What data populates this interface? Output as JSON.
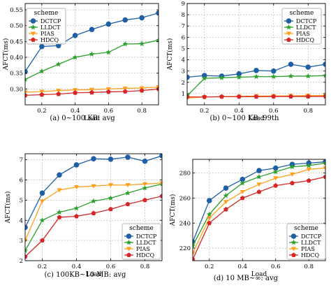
{
  "colors": {
    "DCTCP": "#1f5fa6",
    "LLDCT": "#2ca02c",
    "PIAS": "#ff9f1c",
    "HDCQ": "#d62728",
    "grid": "#bdbdbd"
  },
  "chart_data": [
    {
      "type": "line",
      "caption": "(a)  0~100 KB: avg",
      "xlabel": "Load",
      "ylabel": "AFCT(ms)",
      "xlim": [
        0.1,
        0.9
      ],
      "ylim": [
        0.25,
        0.57
      ],
      "xticks": [
        0.2,
        0.4,
        0.6,
        0.8
      ],
      "yticks": [
        0.3,
        0.35,
        0.4,
        0.45,
        0.5,
        0.55
      ],
      "ytick_labels": [
        "0.30",
        "0.35",
        "0.40",
        "0.45",
        "0.50",
        "0.55"
      ],
      "grid": true,
      "legend": {
        "title": "scheme",
        "placement": "top-left"
      },
      "x": [
        0.1,
        0.2,
        0.3,
        0.4,
        0.5,
        0.6,
        0.7,
        0.8,
        0.9
      ],
      "series": [
        {
          "name": "DCTCP",
          "values": [
            0.355,
            0.434,
            0.437,
            0.469,
            0.488,
            0.505,
            0.518,
            0.525,
            0.54
          ]
        },
        {
          "name": "LLDCT",
          "values": [
            0.33,
            0.356,
            0.378,
            0.4,
            0.41,
            0.416,
            0.442,
            0.443,
            0.454
          ]
        },
        {
          "name": "PIAS",
          "values": [
            0.29,
            0.292,
            0.295,
            0.297,
            0.298,
            0.3,
            0.302,
            0.303,
            0.306
          ]
        },
        {
          "name": "HDCQ",
          "values": [
            0.28,
            0.282,
            0.284,
            0.288,
            0.289,
            0.291,
            0.292,
            0.295,
            0.3
          ]
        }
      ]
    },
    {
      "type": "line",
      "caption": "(b)  0~100 KB: 99th",
      "xlabel": "Load",
      "ylabel": "AFCT(ms)",
      "xlim": [
        0.1,
        0.9
      ],
      "ylim": [
        0,
        9
      ],
      "xticks": [
        0.2,
        0.4,
        0.6,
        0.8
      ],
      "yticks": [
        1,
        2,
        3,
        4,
        5,
        6,
        7,
        8,
        9
      ],
      "ytick_labels": [
        "1",
        "2",
        "3",
        "4",
        "5",
        "6",
        "7",
        "8",
        "9"
      ],
      "grid": true,
      "legend": {
        "title": "scheme",
        "placement": "top-right"
      },
      "x": [
        0.1,
        0.2,
        0.3,
        0.4,
        0.5,
        0.6,
        0.7,
        0.8,
        0.9
      ],
      "series": [
        {
          "name": "DCTCP",
          "values": [
            2.45,
            2.6,
            2.55,
            2.75,
            3.05,
            3.0,
            3.6,
            3.35,
            3.6
          ]
        },
        {
          "name": "LLDCT",
          "values": [
            0.8,
            2.35,
            2.4,
            2.45,
            2.5,
            2.5,
            2.55,
            2.55,
            2.6
          ]
        },
        {
          "name": "PIAS",
          "values": [
            0.6,
            0.7,
            0.72,
            0.75,
            0.78,
            0.78,
            0.8,
            0.82,
            0.82
          ]
        },
        {
          "name": "HDCQ",
          "values": [
            0.7,
            0.7,
            0.72,
            0.72,
            0.72,
            0.74,
            0.74,
            0.74,
            0.75
          ]
        }
      ]
    },
    {
      "type": "line",
      "caption": "(c)  100KB~10 MB: avg",
      "xlabel": "Load",
      "ylabel": "AFCT(ms)",
      "xlim": [
        0.1,
        0.9
      ],
      "ylim": [
        2,
        7.3
      ],
      "xticks": [
        0.2,
        0.4,
        0.6,
        0.8
      ],
      "yticks": [
        2,
        3,
        4,
        5,
        6,
        7
      ],
      "ytick_labels": [
        "2",
        "3",
        "4",
        "5",
        "6",
        "7"
      ],
      "grid": true,
      "legend": {
        "title": "scheme",
        "placement": "bottom-right"
      },
      "x": [
        0.1,
        0.2,
        0.3,
        0.4,
        0.5,
        0.6,
        0.7,
        0.8,
        0.9
      ],
      "series": [
        {
          "name": "DCTCP",
          "values": [
            3.65,
            5.35,
            6.25,
            6.75,
            7.05,
            7.03,
            7.13,
            6.93,
            7.2
          ]
        },
        {
          "name": "LLDCT",
          "values": [
            2.5,
            4.0,
            4.4,
            4.6,
            4.95,
            5.1,
            5.35,
            5.6,
            5.8
          ]
        },
        {
          "name": "PIAS",
          "values": [
            3.0,
            4.95,
            5.5,
            5.65,
            5.7,
            5.75,
            5.75,
            5.8,
            5.85
          ]
        },
        {
          "name": "HDCQ",
          "values": [
            2.2,
            3.0,
            4.15,
            4.2,
            4.35,
            4.55,
            4.8,
            5.0,
            5.2
          ]
        }
      ]
    },
    {
      "type": "line",
      "caption": "(d)  10 MB~∞: avg",
      "xlabel": "Load",
      "ylabel": "AFCT(ms)",
      "xlim": [
        0.1,
        0.9
      ],
      "ylim": [
        210,
        291
      ],
      "xticks": [
        0.2,
        0.4,
        0.6,
        0.8
      ],
      "yticks": [
        220,
        240,
        260,
        280
      ],
      "ytick_labels": [
        "220",
        "240",
        "260",
        "280"
      ],
      "grid": true,
      "legend": {
        "title": "scheme",
        "placement": "bottom-right"
      },
      "x": [
        0.1,
        0.2,
        0.3,
        0.4,
        0.5,
        0.6,
        0.7,
        0.8,
        0.9
      ],
      "series": [
        {
          "name": "DCTCP",
          "values": [
            225,
            258,
            268,
            275,
            282,
            284,
            287,
            288,
            289
          ]
        },
        {
          "name": "LLDCT",
          "values": [
            222,
            247,
            262,
            272,
            277,
            281,
            285,
            286,
            288
          ]
        },
        {
          "name": "PIAS",
          "values": [
            216,
            244,
            257,
            265,
            271,
            276,
            279,
            283,
            284
          ]
        },
        {
          "name": "HDCQ",
          "values": [
            211,
            240,
            251,
            260,
            265,
            270,
            272,
            274,
            277
          ]
        }
      ]
    }
  ]
}
